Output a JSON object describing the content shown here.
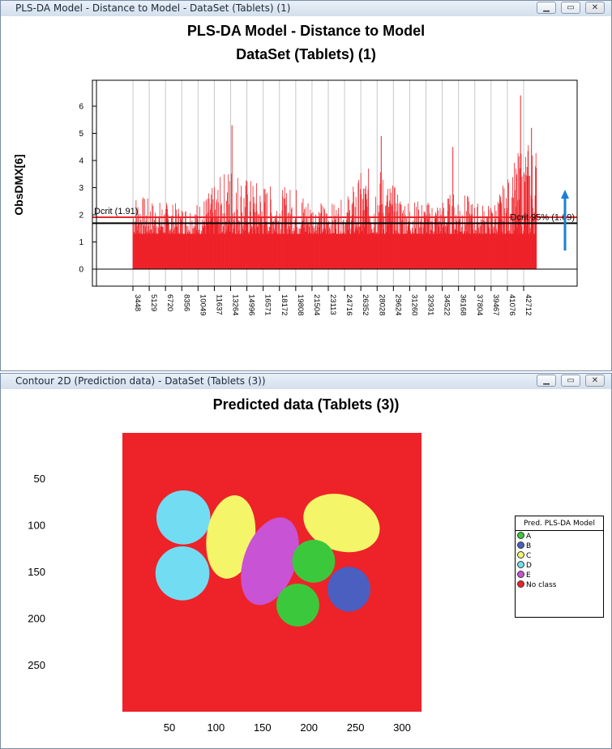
{
  "window1": {
    "title": "PLS-DA Model - Distance to Model - DataSet (Tablets) (1)",
    "chart_title_line1": "PLS-DA Model - Distance to Model",
    "chart_title_line2": "DataSet (Tablets) (1)",
    "ylabel": "ObsDMX[6]",
    "dcrit_label": "Dcrit (1.91)",
    "dcrit95_label": "Dcrit 95% (1.69)",
    "minimize": "▁",
    "maximize": "▭",
    "close": "✕"
  },
  "window2": {
    "title": "Contour 2D (Prediction data) - DataSet (Tablets (3))",
    "chart_title": "Predicted data (Tablets (3))",
    "minimize": "▁",
    "maximize": "▭",
    "close": "✕",
    "legend_title": "Pred. PLS-DA Model",
    "legend_items": [
      {
        "label": "A",
        "color": "#3cc83c"
      },
      {
        "label": "B",
        "color": "#4a5fc0"
      },
      {
        "label": "C",
        "color": "#f5f56a"
      },
      {
        "label": "D",
        "color": "#72dcf2"
      },
      {
        "label": "E",
        "color": "#c853d4"
      },
      {
        "label": "No class",
        "color": "#ee2229"
      }
    ]
  },
  "chart_data": [
    {
      "type": "bar",
      "title": "PLS-DA Model - Distance to Model",
      "subtitle": "DataSet (Tablets) (1)",
      "ylabel": "ObsDMX[6]",
      "ylim": [
        -0.7,
        7
      ],
      "yticks": [
        0,
        1,
        2,
        3,
        4,
        5,
        6
      ],
      "xticks": [
        "3448",
        "5129",
        "6720",
        "8356",
        "10049",
        "11637",
        "13264",
        "14996",
        "16571",
        "18172",
        "19808",
        "21504",
        "23113",
        "24716",
        "26352",
        "28028",
        "29624",
        "31260",
        "32931",
        "34522",
        "36168",
        "37804",
        "39467",
        "41076",
        "42712"
      ],
      "reference_lines": [
        {
          "name": "Dcrit (1.91)",
          "value": 1.91,
          "color": "#e8262a"
        },
        {
          "name": "Dcrit 95% (1.69)",
          "value": 1.69,
          "color": "#000000"
        }
      ],
      "series_color": "#ee2229",
      "profile": [
        {
          "x": 3448,
          "y": 2.9
        },
        {
          "x": 5129,
          "y": 2.6
        },
        {
          "x": 6720,
          "y": 2.5
        },
        {
          "x": 8356,
          "y": 2.4
        },
        {
          "x": 10049,
          "y": 2.5
        },
        {
          "x": 11637,
          "y": 3.1
        },
        {
          "x": 13264,
          "y": 4.0
        },
        {
          "x": 14996,
          "y": 3.4
        },
        {
          "x": 16571,
          "y": 3.2
        },
        {
          "x": 18172,
          "y": 3.0
        },
        {
          "x": 19808,
          "y": 3.1
        },
        {
          "x": 21504,
          "y": 2.6
        },
        {
          "x": 23113,
          "y": 2.4
        },
        {
          "x": 24716,
          "y": 2.6
        },
        {
          "x": 26352,
          "y": 3.6
        },
        {
          "x": 28028,
          "y": 3.9
        },
        {
          "x": 29624,
          "y": 3.1
        },
        {
          "x": 31260,
          "y": 2.6
        },
        {
          "x": 32931,
          "y": 2.5
        },
        {
          "x": 34522,
          "y": 2.6
        },
        {
          "x": 36168,
          "y": 3.0
        },
        {
          "x": 37804,
          "y": 2.5
        },
        {
          "x": 39467,
          "y": 2.4
        },
        {
          "x": 41076,
          "y": 3.4
        },
        {
          "x": 42712,
          "y": 4.8
        }
      ],
      "peaks": [
        {
          "x": 13400,
          "y": 5.3
        },
        {
          "x": 28400,
          "y": 4.9
        },
        {
          "x": 35600,
          "y": 4.5
        },
        {
          "x": 42400,
          "y": 6.4
        },
        {
          "x": 43500,
          "y": 5.2
        }
      ]
    },
    {
      "type": "heatmap",
      "title": "Predicted data (Tablets (3))",
      "xticks": [
        50,
        100,
        150,
        200,
        250,
        300
      ],
      "yticks": [
        50,
        100,
        150,
        200,
        250
      ],
      "xlim": [
        0,
        320
      ],
      "ylim": [
        0,
        300
      ],
      "background_class": "No class",
      "regions": [
        {
          "class": "D",
          "shape": "ellipse",
          "cx": 65,
          "cy": 92,
          "rx": 29,
          "ry": 29
        },
        {
          "class": "D",
          "shape": "ellipse",
          "cx": 64,
          "cy": 152,
          "rx": 29,
          "ry": 29
        },
        {
          "class": "C",
          "shape": "ellipse",
          "cx": 116,
          "cy": 113,
          "rx": 26,
          "ry": 45,
          "rot": 8
        },
        {
          "class": "E",
          "shape": "ellipse",
          "cx": 158,
          "cy": 139,
          "rx": 28,
          "ry": 49,
          "rot": 20
        },
        {
          "class": "C",
          "shape": "ellipse",
          "cx": 235,
          "cy": 98,
          "rx": 42,
          "ry": 30,
          "rot": 18
        },
        {
          "class": "A",
          "shape": "ellipse",
          "cx": 205,
          "cy": 139,
          "rx": 23,
          "ry": 23
        },
        {
          "class": "B",
          "shape": "ellipse",
          "cx": 243,
          "cy": 169,
          "rx": 23,
          "ry": 24
        },
        {
          "class": "A",
          "shape": "ellipse",
          "cx": 188,
          "cy": 186,
          "rx": 23,
          "ry": 23
        }
      ]
    }
  ]
}
